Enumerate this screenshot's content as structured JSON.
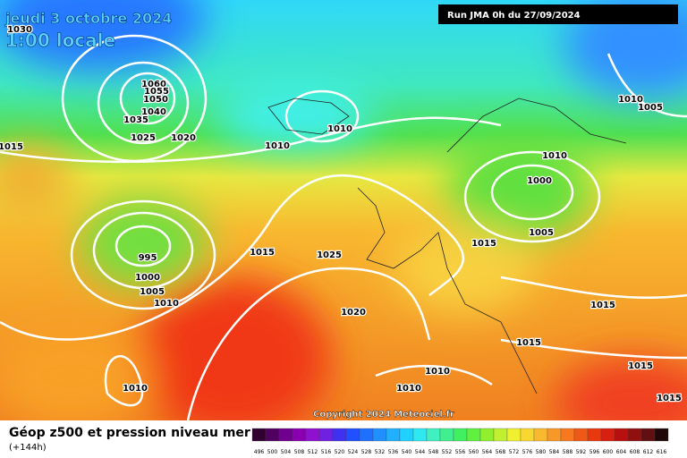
{
  "header": {
    "title": "jeudi 3 octobre 2024",
    "time": "1:00 locale",
    "run": "Run JMA 0h du 27/09/2024"
  },
  "isobar_labels": [
    1030,
    1060,
    1055,
    1050,
    1040,
    1035,
    1025,
    1020,
    1015,
    1010,
    1010,
    995,
    1000,
    1005,
    1010,
    1015,
    1025,
    1020,
    1010,
    1010,
    1010,
    1010,
    1005,
    1010,
    1000,
    1005,
    1015,
    1015,
    1015,
    1015,
    1015
  ],
  "copyright": "Copyright 2024 Meteociel.fr",
  "footer": {
    "title": "Géop z500 et pression niveau mer",
    "subtitle": "(+144h)"
  },
  "scale": [
    496,
    500,
    504,
    508,
    512,
    516,
    520,
    524,
    528,
    532,
    536,
    540,
    544,
    548,
    552,
    556,
    560,
    564,
    568,
    572,
    576,
    580,
    584,
    588,
    592,
    596,
    600,
    604,
    608,
    612,
    616
  ]
}
